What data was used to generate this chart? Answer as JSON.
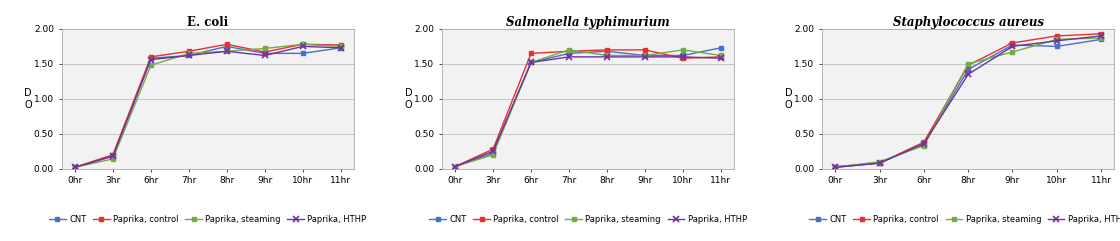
{
  "charts": [
    {
      "title": "E. coli",
      "title_style": "bold",
      "x_labels": [
        "0hr",
        "3hr",
        "6hr",
        "7hr",
        "8hr",
        "9hr",
        "10hr",
        "11hr"
      ],
      "x_values": [
        0,
        1,
        2,
        3,
        4,
        5,
        6,
        7
      ],
      "series": {
        "CNT": [
          0.02,
          0.18,
          1.58,
          1.62,
          1.75,
          1.65,
          1.65,
          1.73
        ],
        "Paprika, control": [
          0.02,
          0.2,
          1.6,
          1.68,
          1.78,
          1.67,
          1.78,
          1.77
        ],
        "Paprika, steaming": [
          0.02,
          0.14,
          1.48,
          1.65,
          1.68,
          1.72,
          1.78,
          1.75
        ],
        "Paprika, HTHP": [
          0.02,
          0.18,
          1.56,
          1.62,
          1.68,
          1.62,
          1.75,
          1.73
        ]
      },
      "ylabel": "D\nO"
    },
    {
      "title": "Salmonella typhimurium",
      "title_style": "italic",
      "x_labels": [
        "0hr",
        "3hr",
        "6hr",
        "7hr",
        "8hr",
        "9hr",
        "10hr",
        "11hr"
      ],
      "x_values": [
        0,
        1,
        2,
        3,
        4,
        5,
        6,
        7
      ],
      "series": {
        "CNT": [
          0.03,
          0.22,
          1.52,
          1.65,
          1.68,
          1.62,
          1.62,
          1.73
        ],
        "Paprika, control": [
          0.03,
          0.28,
          1.65,
          1.68,
          1.7,
          1.7,
          1.58,
          1.6
        ],
        "Paprika, steaming": [
          0.03,
          0.2,
          1.52,
          1.7,
          1.62,
          1.62,
          1.7,
          1.62
        ],
        "Paprika, HTHP": [
          0.03,
          0.25,
          1.52,
          1.6,
          1.6,
          1.6,
          1.6,
          1.58
        ]
      },
      "ylabel": "D\nO"
    },
    {
      "title": "Staphylococcus aureus",
      "title_style": "italic",
      "x_labels": [
        "0hr",
        "3hr",
        "6hr",
        "8hr",
        "9hr",
        "10hr",
        "11hr"
      ],
      "x_values": [
        0,
        1,
        2,
        3,
        4,
        5,
        6
      ],
      "series": {
        "CNT": [
          0.02,
          0.08,
          0.35,
          1.42,
          1.77,
          1.75,
          1.85
        ],
        "Paprika, control": [
          0.03,
          0.08,
          0.38,
          1.48,
          1.8,
          1.9,
          1.93
        ],
        "Paprika, steaming": [
          0.02,
          0.1,
          0.33,
          1.5,
          1.67,
          1.85,
          1.87
        ],
        "Paprika, HTHP": [
          0.02,
          0.08,
          0.36,
          1.35,
          1.75,
          1.83,
          1.9
        ]
      },
      "ylabel": "D\nO"
    }
  ],
  "series_colors": {
    "CNT": "#4472C4",
    "Paprika, control": "#E8312A",
    "Paprika, steaming": "#70AD47",
    "Paprika, HTHP": "#7030A0"
  },
  "series_markers": {
    "CNT": "s",
    "Paprika, control": "s",
    "Paprika, steaming": "s",
    "Paprika, HTHP": "x"
  },
  "ylim": [
    0.0,
    2.0
  ],
  "yticks": [
    0.0,
    0.5,
    1.0,
    1.5,
    2.0
  ],
  "background_color": "#FFFFFF",
  "panel_bg": "#F2F2F2",
  "grid_color": "#BEBEBE",
  "legend_labels": [
    "CNT",
    "Paprika, control",
    "Paprika, steaming",
    "Paprika, HTHP"
  ]
}
